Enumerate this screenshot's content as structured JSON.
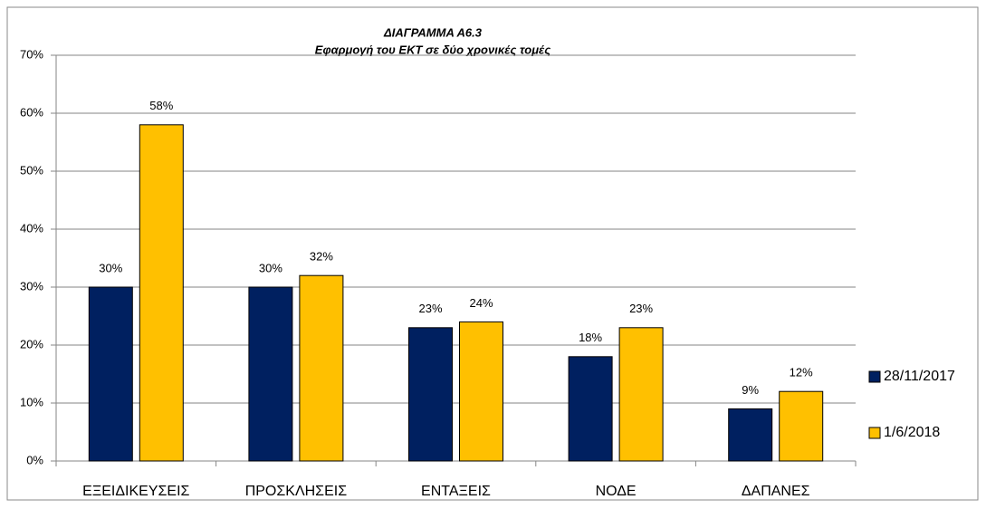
{
  "chart_data": {
    "type": "bar",
    "title": "ΔΙΑΓΡΑΜΜΑ  Α6.3",
    "subtitle": "Εφαρμογή του ΕΚΤ  σε δύο χρονικές τομές",
    "categories": [
      "ΕΞΕΙΔΙΚΕΥΣΕΙΣ",
      "ΠΡΟΣΚΛΗΣΕΙΣ",
      "ΕΝΤΑΞΕΙΣ",
      "ΝΟΔΕ",
      "ΔΑΠΑΝΕΣ"
    ],
    "series": [
      {
        "name": "28/11/2017",
        "color": "#002060",
        "values": [
          30,
          30,
          23,
          18,
          9
        ],
        "value_labels": [
          "30%",
          "30%",
          "23%",
          "18%",
          "9%"
        ]
      },
      {
        "name": "1/6/2018",
        "color": "#FFC000",
        "values": [
          58,
          32,
          24,
          23,
          12
        ],
        "value_labels": [
          "58%",
          "32%",
          "24%",
          "23%",
          "12%"
        ]
      }
    ],
    "ylim": [
      0,
      70
    ],
    "yticks": [
      {
        "value": 0,
        "label": "0%"
      },
      {
        "value": 10,
        "label": "10%"
      },
      {
        "value": 20,
        "label": "20%"
      },
      {
        "value": 30,
        "label": "30%"
      },
      {
        "value": 40,
        "label": "40%"
      },
      {
        "value": 50,
        "label": "50%"
      },
      {
        "value": 60,
        "label": "60%"
      },
      {
        "value": 70,
        "label": "70%"
      }
    ],
    "grid": true,
    "legend": "right"
  }
}
